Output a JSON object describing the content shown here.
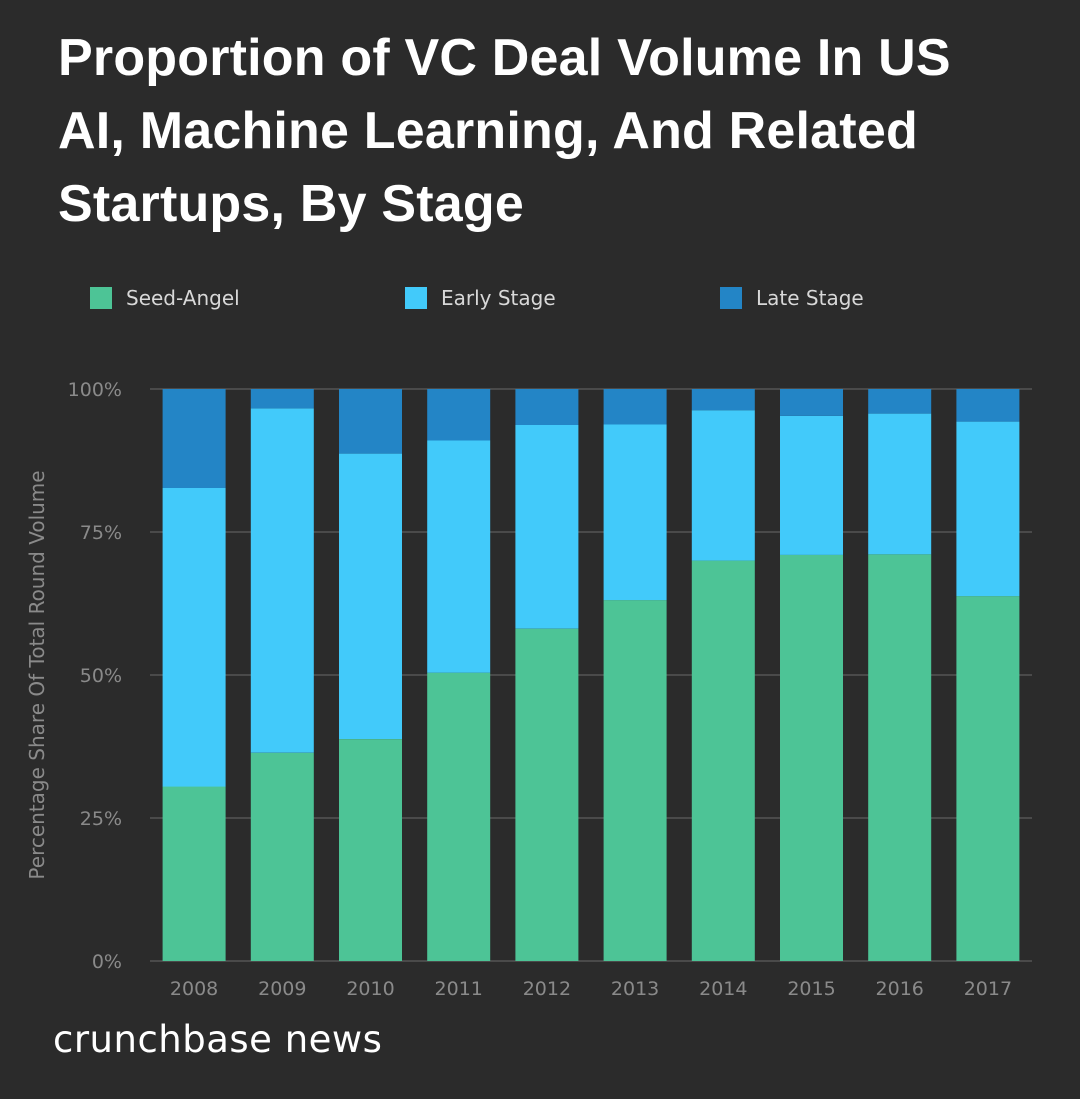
{
  "title_lines": [
    "Proportion of VC Deal Volume In US",
    "AI, Machine Learning, And Related",
    "Startups, By Stage"
  ],
  "brand": "crunchbase news",
  "colors": {
    "background": "#2b2b2b",
    "seed_angel": "#4dc496",
    "early_stage": "#42cafa",
    "late_stage": "#2385c6",
    "gridline": "#6a6a6a",
    "axis_text": "#8a8a8a"
  },
  "chart_data": {
    "type": "bar",
    "stacked": true,
    "title": "Proportion of VC Deal Volume In US AI, Machine Learning, And Related Startups, By Stage",
    "xlabel": "",
    "ylabel": "Percentage Share Of Total Round Volume",
    "ylim": [
      0,
      100
    ],
    "yticks": [
      "0%",
      "25%",
      "50%",
      "75%",
      "100%"
    ],
    "ytick_values": [
      0,
      25,
      50,
      75,
      100
    ],
    "grid": true,
    "legend_position": "top",
    "categories": [
      "2008",
      "2009",
      "2010",
      "2011",
      "2012",
      "2013",
      "2014",
      "2015",
      "2016",
      "2017"
    ],
    "series": [
      {
        "name": "Seed-Angel",
        "color": "#4dc496",
        "values": [
          30.5,
          36.4,
          38.8,
          50.4,
          58.1,
          63.1,
          70.0,
          71.0,
          71.1,
          63.8
        ]
      },
      {
        "name": "Early Stage",
        "color": "#42cafa",
        "values": [
          52.2,
          60.2,
          49.9,
          40.6,
          35.6,
          30.7,
          26.3,
          24.3,
          24.6,
          30.5
        ]
      },
      {
        "name": "Late Stage",
        "color": "#2385c6",
        "values": [
          17.3,
          3.4,
          11.3,
          9.0,
          6.3,
          6.2,
          3.7,
          4.7,
          4.3,
          5.7
        ]
      }
    ]
  }
}
